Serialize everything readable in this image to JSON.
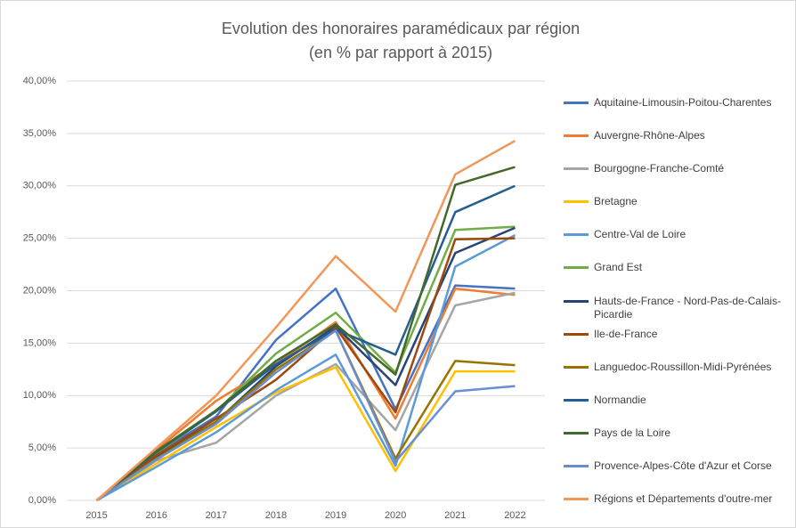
{
  "chart_data": {
    "type": "line",
    "title": "Evolution des honoraires paramédicaux par région",
    "subtitle": "(en % par rapport à 2015)",
    "x": [
      "2015",
      "2016",
      "2017",
      "2018",
      "2019",
      "2020",
      "2021",
      "2022"
    ],
    "ylim": [
      0,
      40
    ],
    "yticks": [
      {
        "value": 0,
        "label": "0,00%"
      },
      {
        "value": 5,
        "label": "5,00%"
      },
      {
        "value": 10,
        "label": "10,00%"
      },
      {
        "value": 15,
        "label": "15,00%"
      },
      {
        "value": 20,
        "label": "20,00%"
      },
      {
        "value": 25,
        "label": "25,00%"
      },
      {
        "value": 30,
        "label": "30,00%"
      },
      {
        "value": 35,
        "label": "35,00%"
      },
      {
        "value": 40,
        "label": "40,00%"
      }
    ],
    "grid": true,
    "legend": "right",
    "series": [
      {
        "name": "Aquitaine-Limousin-Poitou-Charentes",
        "color": "#4472c4",
        "values": [
          0,
          4.5,
          8,
          15.3,
          20.2,
          8.7,
          20.5,
          20.2
        ]
      },
      {
        "name": "Auvergne-Rhône-Alpes",
        "color": "#ed7d31",
        "values": [
          0,
          4.8,
          9.5,
          13,
          17,
          7.8,
          20.2,
          19.6
        ]
      },
      {
        "name": "Bourgogne-Franche-Comté",
        "color": "#a5a5a5",
        "values": [
          0,
          3.8,
          5.5,
          10,
          13,
          6.7,
          18.6,
          19.8
        ]
      },
      {
        "name": "Bretagne",
        "color": "#ffc000",
        "values": [
          0,
          3.5,
          7,
          10.3,
          12.7,
          2.8,
          12.3,
          12.3
        ]
      },
      {
        "name": "Centre-Val de Loire",
        "color": "#5b9bd5",
        "values": [
          0,
          3.2,
          6.5,
          10.5,
          13.9,
          3.3,
          22.3,
          25.3
        ]
      },
      {
        "name": "Grand Est",
        "color": "#70ad47",
        "values": [
          0,
          4.5,
          8.5,
          14,
          17.9,
          12.2,
          25.8,
          26.1
        ]
      },
      {
        "name": "Hauts-de-France - Nord-Pas-de-Calais-Picardie",
        "color": "#264478",
        "values": [
          0,
          4.2,
          7.5,
          12.8,
          16.6,
          11,
          23.6,
          26
        ]
      },
      {
        "name": "Ile-de-France",
        "color": "#9e480e",
        "values": [
          0,
          4.3,
          7.8,
          11.5,
          16.5,
          8.4,
          24.9,
          25
        ]
      },
      {
        "name": "Languedoc-Roussillon-Midi-Pyrénées",
        "color": "#997300",
        "values": [
          0,
          4,
          7.5,
          12.5,
          16.2,
          4,
          13.3,
          12.9
        ]
      },
      {
        "name": "Normandie",
        "color": "#255e91",
        "values": [
          0,
          4.6,
          8.5,
          13,
          16.3,
          13.9,
          27.5,
          30
        ]
      },
      {
        "name": "Pays de la Loire",
        "color": "#43682b",
        "values": [
          0,
          4.7,
          8.6,
          13.3,
          16.8,
          12,
          30.1,
          31.8
        ]
      },
      {
        "name": "Provence-Alpes-Côte d'Azur et Corse",
        "color": "#698ed0",
        "values": [
          0,
          3.9,
          7.3,
          12.2,
          16.2,
          3.7,
          10.4,
          10.9
        ]
      },
      {
        "name": "Régions et Départements d'outre-mer",
        "color": "#f1975a",
        "values": [
          0,
          5,
          10,
          16.5,
          23.3,
          18,
          31.1,
          34.3
        ]
      }
    ]
  }
}
